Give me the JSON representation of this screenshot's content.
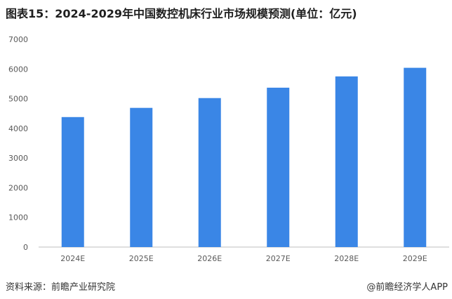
{
  "title": "图表15：2024-2029年中国数控机床行业市场规模预测(单位：亿元)",
  "source": "资料来源：前瞻产业研究院",
  "brand": "@前瞻经济学人APP",
  "colors": {
    "bar": "#3a86e6",
    "axis": "#bfbfbf",
    "tick_text": "#595959"
  },
  "chart_data": {
    "type": "bar",
    "title": "图表15：2024-2029年中国数控机床行业市场规模预测(单位：亿元)",
    "categories": [
      "2024E",
      "2025E",
      "2026E",
      "2027E",
      "2028E",
      "2029E"
    ],
    "values": [
      4380,
      4690,
      5020,
      5370,
      5750,
      6040
    ],
    "yticks": [
      0,
      1000,
      2000,
      3000,
      4000,
      5000,
      6000,
      7000
    ],
    "ylim": [
      0,
      7000
    ],
    "grid": false,
    "xlabel": "",
    "ylabel": ""
  }
}
